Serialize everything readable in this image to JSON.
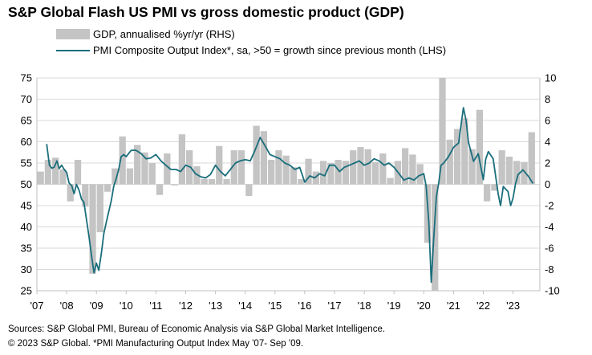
{
  "title": "S&P Global Flash US PMI vs gross domestic product (GDP)",
  "legend": {
    "gdp": "GDP, annualised %yr/yr (RHS)",
    "pmi": "PMI Composite Output Index*, sa, >50 = growth since previous month (LHS)"
  },
  "footer": {
    "line1": "Sources: S&P Global PMI, Bureau of Economic Analysis via S&P Global Market Intelligence.",
    "line2": "© 2023 S&P Global.  *PMI Manufacturing Output Index May '07- Sep '09."
  },
  "colors": {
    "gdp_bar": "#c4c4c4",
    "pmi_line": "#1a6e7c",
    "grid": "#d9d9d9"
  },
  "chart_data": {
    "type": "bar",
    "x_range": [
      2007.0,
      2023.9
    ],
    "x_ticks": [
      {
        "x": 2007.0,
        "label": "'07"
      },
      {
        "x": 2008.0,
        "label": "'08"
      },
      {
        "x": 2009.0,
        "label": "'09"
      },
      {
        "x": 2010.0,
        "label": "'10"
      },
      {
        "x": 2011.0,
        "label": "'11"
      },
      {
        "x": 2012.0,
        "label": "'12"
      },
      {
        "x": 2013.0,
        "label": "'13"
      },
      {
        "x": 2014.0,
        "label": "'14"
      },
      {
        "x": 2015.0,
        "label": "'15"
      },
      {
        "x": 2016.0,
        "label": "'16"
      },
      {
        "x": 2017.0,
        "label": "'17"
      },
      {
        "x": 2018.0,
        "label": "'18"
      },
      {
        "x": 2019.0,
        "label": "'19"
      },
      {
        "x": 2020.0,
        "label": "'20"
      },
      {
        "x": 2021.0,
        "label": "'21"
      },
      {
        "x": 2022.0,
        "label": "'22"
      },
      {
        "x": 2023.0,
        "label": "'23"
      }
    ],
    "left_axis": {
      "range": [
        25,
        75
      ],
      "ticks": [
        25,
        30,
        35,
        40,
        45,
        50,
        55,
        60,
        65,
        70,
        75
      ]
    },
    "right_axis": {
      "range": [
        -10,
        10
      ],
      "ticks": [
        -10,
        -8,
        -6,
        -4,
        -2,
        0,
        2,
        4,
        6,
        8,
        10
      ]
    },
    "grid": "horizontal",
    "gdp_quarters": {
      "quarter_start": [
        2007.0,
        2007.25,
        2007.5,
        2007.75,
        2008.0,
        2008.25,
        2008.5,
        2008.75,
        2009.0,
        2009.25,
        2009.5,
        2009.75,
        2010.0,
        2010.25,
        2010.5,
        2010.75,
        2011.0,
        2011.25,
        2011.5,
        2011.75,
        2012.0,
        2012.25,
        2012.5,
        2012.75,
        2013.0,
        2013.25,
        2013.5,
        2013.75,
        2014.0,
        2014.25,
        2014.5,
        2014.75,
        2015.0,
        2015.25,
        2015.5,
        2015.75,
        2016.0,
        2016.25,
        2016.5,
        2016.75,
        2017.0,
        2017.25,
        2017.5,
        2017.75,
        2018.0,
        2018.25,
        2018.5,
        2018.75,
        2019.0,
        2019.25,
        2019.5,
        2019.75,
        2020.0,
        2020.25,
        2020.5,
        2020.75,
        2021.0,
        2021.25,
        2021.5,
        2021.75,
        2022.0,
        2022.25,
        2022.5,
        2022.75,
        2023.0,
        2023.25,
        2023.5
      ],
      "values": [
        1.2,
        2.3,
        2.5,
        1.4,
        -1.6,
        2.3,
        -2.1,
        -8.4,
        -4.5,
        -0.7,
        1.5,
        4.5,
        1.5,
        3.7,
        3.0,
        2.0,
        -1.0,
        2.9,
        -0.1,
        4.7,
        3.2,
        1.7,
        0.5,
        0.5,
        3.6,
        0.5,
        3.2,
        3.2,
        -1.1,
        5.5,
        5.0,
        2.3,
        3.2,
        2.7,
        1.6,
        0.5,
        2.4,
        1.2,
        2.2,
        2.0,
        2.3,
        2.2,
        3.2,
        3.5,
        3.3,
        2.1,
        2.9,
        0.6,
        2.2,
        3.4,
        2.8,
        1.9,
        -5.5,
        -29.9,
        35.3,
        4.2,
        5.2,
        6.2,
        3.3,
        7.0,
        -1.6,
        -0.6,
        3.2,
        2.6,
        2.2,
        2.1,
        4.9
      ]
    },
    "pmi_series": {
      "x": [
        2007.33,
        2007.42,
        2007.5,
        2007.58,
        2007.67,
        2007.75,
        2007.83,
        2007.92,
        2008.0,
        2008.08,
        2008.17,
        2008.25,
        2008.33,
        2008.42,
        2008.5,
        2008.58,
        2008.67,
        2008.75,
        2008.83,
        2008.92,
        2009.0,
        2009.08,
        2009.17,
        2009.25,
        2009.33,
        2009.42,
        2009.5,
        2009.58,
        2009.67,
        2009.75,
        2009.83,
        2009.92,
        2010.0,
        2010.17,
        2010.33,
        2010.5,
        2010.67,
        2010.83,
        2011.0,
        2011.17,
        2011.33,
        2011.5,
        2011.67,
        2011.83,
        2012.0,
        2012.17,
        2012.33,
        2012.5,
        2012.67,
        2012.83,
        2013.0,
        2013.17,
        2013.33,
        2013.5,
        2013.67,
        2013.83,
        2014.0,
        2014.17,
        2014.33,
        2014.5,
        2014.67,
        2014.83,
        2015.0,
        2015.17,
        2015.33,
        2015.5,
        2015.67,
        2015.83,
        2016.0,
        2016.17,
        2016.33,
        2016.5,
        2016.67,
        2016.83,
        2017.0,
        2017.17,
        2017.33,
        2017.5,
        2017.67,
        2017.83,
        2018.0,
        2018.17,
        2018.33,
        2018.5,
        2018.67,
        2018.83,
        2019.0,
        2019.17,
        2019.33,
        2019.5,
        2019.67,
        2019.83,
        2020.0,
        2020.08,
        2020.17,
        2020.25,
        2020.33,
        2020.42,
        2020.5,
        2020.58,
        2020.67,
        2020.83,
        2021.0,
        2021.17,
        2021.33,
        2021.42,
        2021.5,
        2021.67,
        2021.83,
        2022.0,
        2022.08,
        2022.17,
        2022.33,
        2022.5,
        2022.58,
        2022.67,
        2022.83,
        2022.92,
        2023.0,
        2023.08,
        2023.17,
        2023.33,
        2023.5,
        2023.67
      ],
      "y": [
        59.5,
        54.5,
        53.8,
        54.0,
        55.5,
        53.7,
        54.5,
        53.5,
        52.8,
        50.3,
        49.7,
        47.8,
        50.0,
        48.5,
        46.5,
        45.8,
        41.5,
        37.8,
        33.5,
        29.2,
        31.5,
        29.8,
        34.0,
        38.5,
        41.0,
        43.8,
        46.2,
        49.5,
        51.5,
        53.5,
        56.5,
        57.0,
        56.5,
        58.0,
        58.0,
        57.2,
        56.0,
        56.2,
        57.0,
        55.5,
        54.5,
        53.5,
        53.5,
        53.0,
        54.5,
        54.0,
        52.5,
        51.8,
        51.5,
        52.3,
        54.5,
        53.0,
        52.0,
        53.5,
        55.0,
        55.5,
        55.8,
        55.5,
        58.0,
        61.0,
        59.0,
        57.0,
        56.5,
        56.0,
        55.0,
        54.5,
        53.5,
        54.0,
        50.5,
        52.0,
        51.5,
        52.5,
        52.0,
        54.5,
        54.5,
        53.0,
        54.0,
        54.5,
        55.0,
        55.5,
        54.5,
        55.0,
        56.0,
        55.5,
        54.5,
        55.0,
        54.0,
        52.5,
        51.0,
        51.5,
        51.0,
        52.0,
        52.5,
        49.5,
        41.0,
        27.0,
        37.0,
        47.0,
        50.3,
        54.5,
        55.0,
        56.5,
        58.7,
        59.7,
        68.0,
        65.0,
        59.9,
        55.4,
        57.2,
        51.1,
        55.9,
        57.7,
        56.0,
        47.7,
        45.0,
        49.5,
        48.3,
        45.0,
        46.8,
        50.1,
        52.3,
        53.4,
        52.0,
        50.2
      ]
    }
  }
}
